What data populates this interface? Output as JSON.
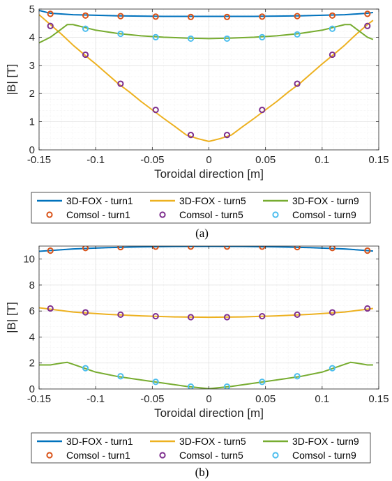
{
  "chart_data": [
    {
      "type": "line",
      "caption": "(a)",
      "xlabel": "Toroidal direction [m]",
      "ylabel": "|B| [T]",
      "xlim": [
        -0.15,
        0.15
      ],
      "ylim": [
        0,
        5
      ],
      "xticks": [
        -0.15,
        -0.1,
        -0.05,
        0,
        0.05,
        0.1,
        0.15
      ],
      "xtick_labels": [
        "-0.15",
        "-0.1",
        "-0.05",
        "0",
        "0.05",
        "0.1",
        "0.15"
      ],
      "yticks": [
        0,
        1,
        2,
        3,
        4,
        5
      ],
      "ytick_labels": [
        "0",
        "1",
        "2",
        "3",
        "4",
        "5"
      ],
      "grid": "on (major and minor)",
      "legend_placement": "below the plot",
      "series": [
        {
          "name": "3D-FOX - turn1",
          "kind": "line",
          "color": "#0072BD",
          "x": [
            -0.15,
            -0.14,
            -0.12,
            -0.1,
            -0.08,
            -0.06,
            -0.04,
            -0.02,
            0,
            0.02,
            0.04,
            0.06,
            0.08,
            0.1,
            0.12,
            0.14,
            0.145
          ],
          "y": [
            4.95,
            4.85,
            4.8,
            4.78,
            4.76,
            4.75,
            4.74,
            4.74,
            4.74,
            4.74,
            4.74,
            4.75,
            4.76,
            4.78,
            4.8,
            4.85,
            4.88
          ]
        },
        {
          "name": "3D-FOX - turn5",
          "kind": "line",
          "color": "#EDB120",
          "x": [
            -0.15,
            -0.14,
            -0.13,
            -0.12,
            -0.11,
            -0.1,
            -0.09,
            -0.08,
            -0.07,
            -0.06,
            -0.05,
            -0.04,
            -0.03,
            -0.02,
            -0.01,
            0,
            0.01,
            0.02,
            0.03,
            0.04,
            0.05,
            0.06,
            0.07,
            0.08,
            0.09,
            0.1,
            0.11,
            0.12,
            0.13,
            0.14,
            0.145
          ],
          "y": [
            4.8,
            4.45,
            4.1,
            3.72,
            3.38,
            3.05,
            2.7,
            2.35,
            2.05,
            1.72,
            1.42,
            1.12,
            0.83,
            0.53,
            0.4,
            0.3,
            0.4,
            0.53,
            0.83,
            1.12,
            1.42,
            1.72,
            2.05,
            2.35,
            2.7,
            3.05,
            3.38,
            3.72,
            4.1,
            4.45,
            4.6
          ]
        },
        {
          "name": "3D-FOX - turn9",
          "kind": "line",
          "color": "#77AC30",
          "x": [
            -0.15,
            -0.14,
            -0.13,
            -0.125,
            -0.12,
            -0.11,
            -0.1,
            -0.08,
            -0.06,
            -0.04,
            -0.02,
            0,
            0.02,
            0.04,
            0.06,
            0.08,
            0.1,
            0.11,
            0.12,
            0.125,
            0.13,
            0.14,
            0.145
          ],
          "y": [
            3.8,
            4.0,
            4.3,
            4.45,
            4.45,
            4.35,
            4.25,
            4.13,
            4.05,
            4.0,
            3.97,
            3.95,
            3.97,
            4.0,
            4.05,
            4.13,
            4.25,
            4.35,
            4.45,
            4.45,
            4.3,
            4.0,
            3.92
          ]
        },
        {
          "name": "Comsol - turn1",
          "kind": "marker",
          "color": "#D95319",
          "x": [
            -0.14,
            -0.109,
            -0.078,
            -0.047,
            -0.016,
            0.016,
            0.047,
            0.078,
            0.109,
            0.14
          ],
          "y": [
            4.83,
            4.77,
            4.75,
            4.73,
            4.72,
            4.72,
            4.73,
            4.75,
            4.77,
            4.83
          ]
        },
        {
          "name": "Comsol - turn5",
          "kind": "marker",
          "color": "#7E2F8E",
          "x": [
            -0.14,
            -0.109,
            -0.078,
            -0.047,
            -0.016,
            0.016,
            0.047,
            0.078,
            0.109,
            0.14
          ],
          "y": [
            4.4,
            3.38,
            2.35,
            1.42,
            0.53,
            0.53,
            1.42,
            2.35,
            3.38,
            4.4
          ]
        },
        {
          "name": "Comsol - turn9",
          "kind": "marker",
          "color": "#4DBEEE",
          "x": [
            -0.109,
            -0.078,
            -0.047,
            -0.016,
            0.016,
            0.047,
            0.078,
            0.109
          ],
          "y": [
            4.3,
            4.12,
            4.0,
            3.95,
            3.95,
            4.0,
            4.1,
            4.3
          ]
        }
      ]
    },
    {
      "type": "line",
      "caption": "(b)",
      "xlabel": "Toroidal direction [m]",
      "ylabel": "|B| [T]",
      "xlim": [
        -0.15,
        0.15
      ],
      "ylim": [
        0,
        11
      ],
      "xticks": [
        -0.15,
        -0.1,
        -0.05,
        0,
        0.05,
        0.1,
        0.15
      ],
      "xtick_labels": [
        "-0.15",
        "-0.1",
        "-0.05",
        "0",
        "0.05",
        "0.1",
        "0.15"
      ],
      "yticks": [
        0,
        2,
        4,
        6,
        8,
        10
      ],
      "ytick_labels": [
        "0",
        "2",
        "4",
        "6",
        "8",
        "10"
      ],
      "grid": "on (major and minor)",
      "legend_placement": "below the plot",
      "series": [
        {
          "name": "3D-FOX - turn1",
          "kind": "line",
          "color": "#0072BD",
          "x": [
            -0.15,
            -0.12,
            -0.09,
            -0.06,
            -0.03,
            0,
            0.03,
            0.06,
            0.09,
            0.12,
            0.145
          ],
          "y": [
            10.6,
            10.78,
            10.88,
            10.94,
            10.97,
            10.98,
            10.97,
            10.94,
            10.88,
            10.78,
            10.62
          ]
        },
        {
          "name": "3D-FOX - turn5",
          "kind": "line",
          "color": "#EDB120",
          "x": [
            -0.15,
            -0.12,
            -0.09,
            -0.06,
            -0.03,
            0,
            0.03,
            0.06,
            0.09,
            0.12,
            0.145
          ],
          "y": [
            6.25,
            5.92,
            5.75,
            5.63,
            5.55,
            5.52,
            5.55,
            5.63,
            5.75,
            5.92,
            6.2
          ]
        },
        {
          "name": "3D-FOX - turn9",
          "kind": "line",
          "color": "#77AC30",
          "x": [
            -0.15,
            -0.14,
            -0.13,
            -0.125,
            -0.12,
            -0.11,
            -0.1,
            -0.08,
            -0.06,
            -0.04,
            -0.02,
            0,
            0.02,
            0.04,
            0.06,
            0.08,
            0.1,
            0.11,
            0.12,
            0.125,
            0.13,
            0.14,
            0.145
          ],
          "y": [
            1.85,
            1.85,
            2.0,
            2.05,
            1.9,
            1.6,
            1.3,
            0.95,
            0.7,
            0.45,
            0.2,
            0.02,
            0.2,
            0.45,
            0.7,
            0.95,
            1.3,
            1.6,
            1.9,
            2.05,
            2.0,
            1.85,
            1.85
          ]
        },
        {
          "name": "Comsol - turn1",
          "kind": "marker",
          "color": "#D95319",
          "x": [
            -0.14,
            -0.109,
            -0.078,
            -0.047,
            -0.016,
            0.016,
            0.047,
            0.078,
            0.109,
            0.14
          ],
          "y": [
            10.65,
            10.85,
            10.92,
            10.95,
            10.96,
            10.96,
            10.95,
            10.92,
            10.85,
            10.65
          ]
        },
        {
          "name": "Comsol - turn5",
          "kind": "marker",
          "color": "#7E2F8E",
          "x": [
            -0.14,
            -0.109,
            -0.078,
            -0.047,
            -0.016,
            0.016,
            0.047,
            0.078,
            0.109,
            0.14
          ],
          "y": [
            6.2,
            5.9,
            5.72,
            5.6,
            5.53,
            5.53,
            5.6,
            5.72,
            5.9,
            6.2
          ]
        },
        {
          "name": "Comsol - turn9",
          "kind": "marker",
          "color": "#4DBEEE",
          "x": [
            -0.109,
            -0.078,
            -0.047,
            -0.016,
            0.016,
            0.047,
            0.078,
            0.109
          ],
          "y": [
            1.6,
            0.98,
            0.55,
            0.18,
            0.18,
            0.55,
            0.98,
            1.6
          ]
        }
      ]
    }
  ]
}
